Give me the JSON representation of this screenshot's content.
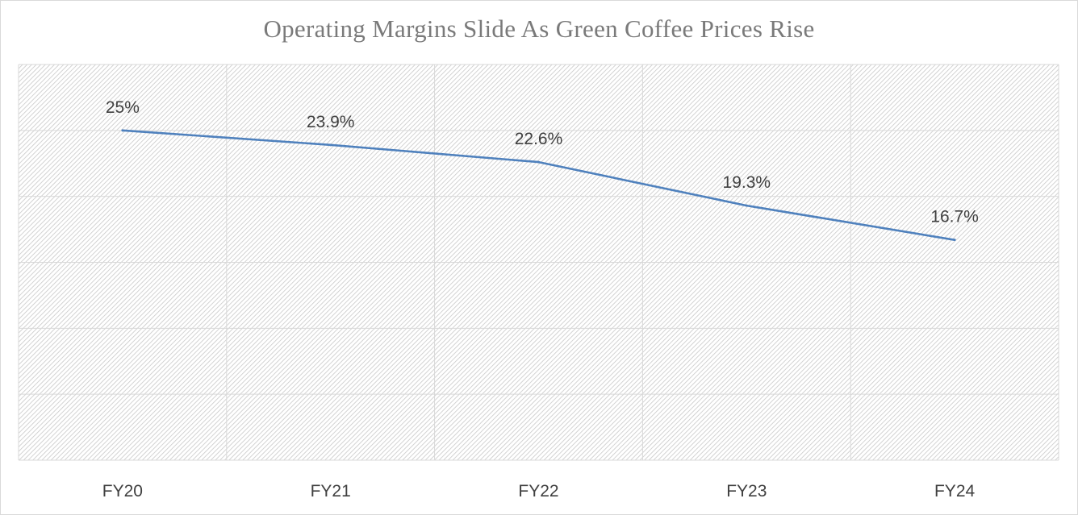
{
  "colors": {
    "series": "#4f81bd",
    "gridline": "#d9d9d9",
    "hatch": "#c8c8c8",
    "text": "#404040",
    "title": "#7a7a7a"
  },
  "chart_data": {
    "type": "line",
    "title": "Operating Margins Slide As Green Coffee Prices Rise",
    "xlabel": "",
    "ylabel": "",
    "categories": [
      "FY20",
      "FY21",
      "FY22",
      "FY23",
      "FY24"
    ],
    "series": [
      {
        "values": [
          25,
          23.9,
          22.6,
          19.3,
          16.7
        ],
        "data_labels": [
          "25%",
          "23.9%",
          "22.6%",
          "19.3%",
          "16.7%"
        ]
      }
    ],
    "ylim": [
      0,
      30
    ],
    "y_major_unit": 5,
    "y_axis_labels_visible": false,
    "grid": true,
    "plot_area_pattern": "diagonal-hatch",
    "legend": "none"
  }
}
